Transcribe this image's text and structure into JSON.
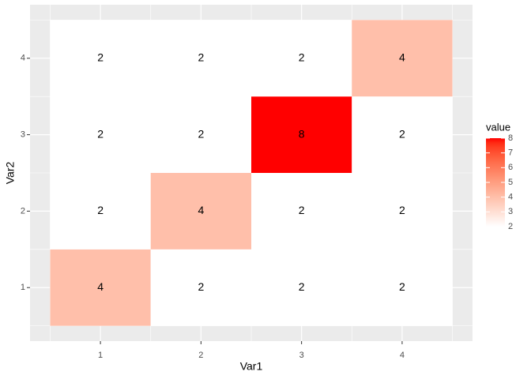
{
  "chart_data": {
    "type": "heatmap",
    "x_label": "Var1",
    "y_label": "Var2",
    "x": [
      1,
      2,
      3,
      4
    ],
    "y": [
      1,
      2,
      3,
      4
    ],
    "values": [
      [
        4,
        2,
        2,
        2
      ],
      [
        2,
        4,
        2,
        2
      ],
      [
        2,
        2,
        8,
        2
      ],
      [
        2,
        2,
        2,
        4
      ]
    ],
    "xlim": [
      0.3,
      4.7
    ],
    "ylim": [
      0.3,
      4.7
    ],
    "xticks": [
      1,
      2,
      3,
      4
    ],
    "yticks": [
      1,
      2,
      3,
      4
    ],
    "grid": true,
    "colorbar": {
      "title": "value",
      "low_color": "#ffffff",
      "high_color": "#ff0000",
      "lim": [
        2,
        8
      ],
      "ticks": [
        2,
        3,
        4,
        5,
        6,
        7,
        8
      ]
    },
    "legend_position": "right"
  }
}
